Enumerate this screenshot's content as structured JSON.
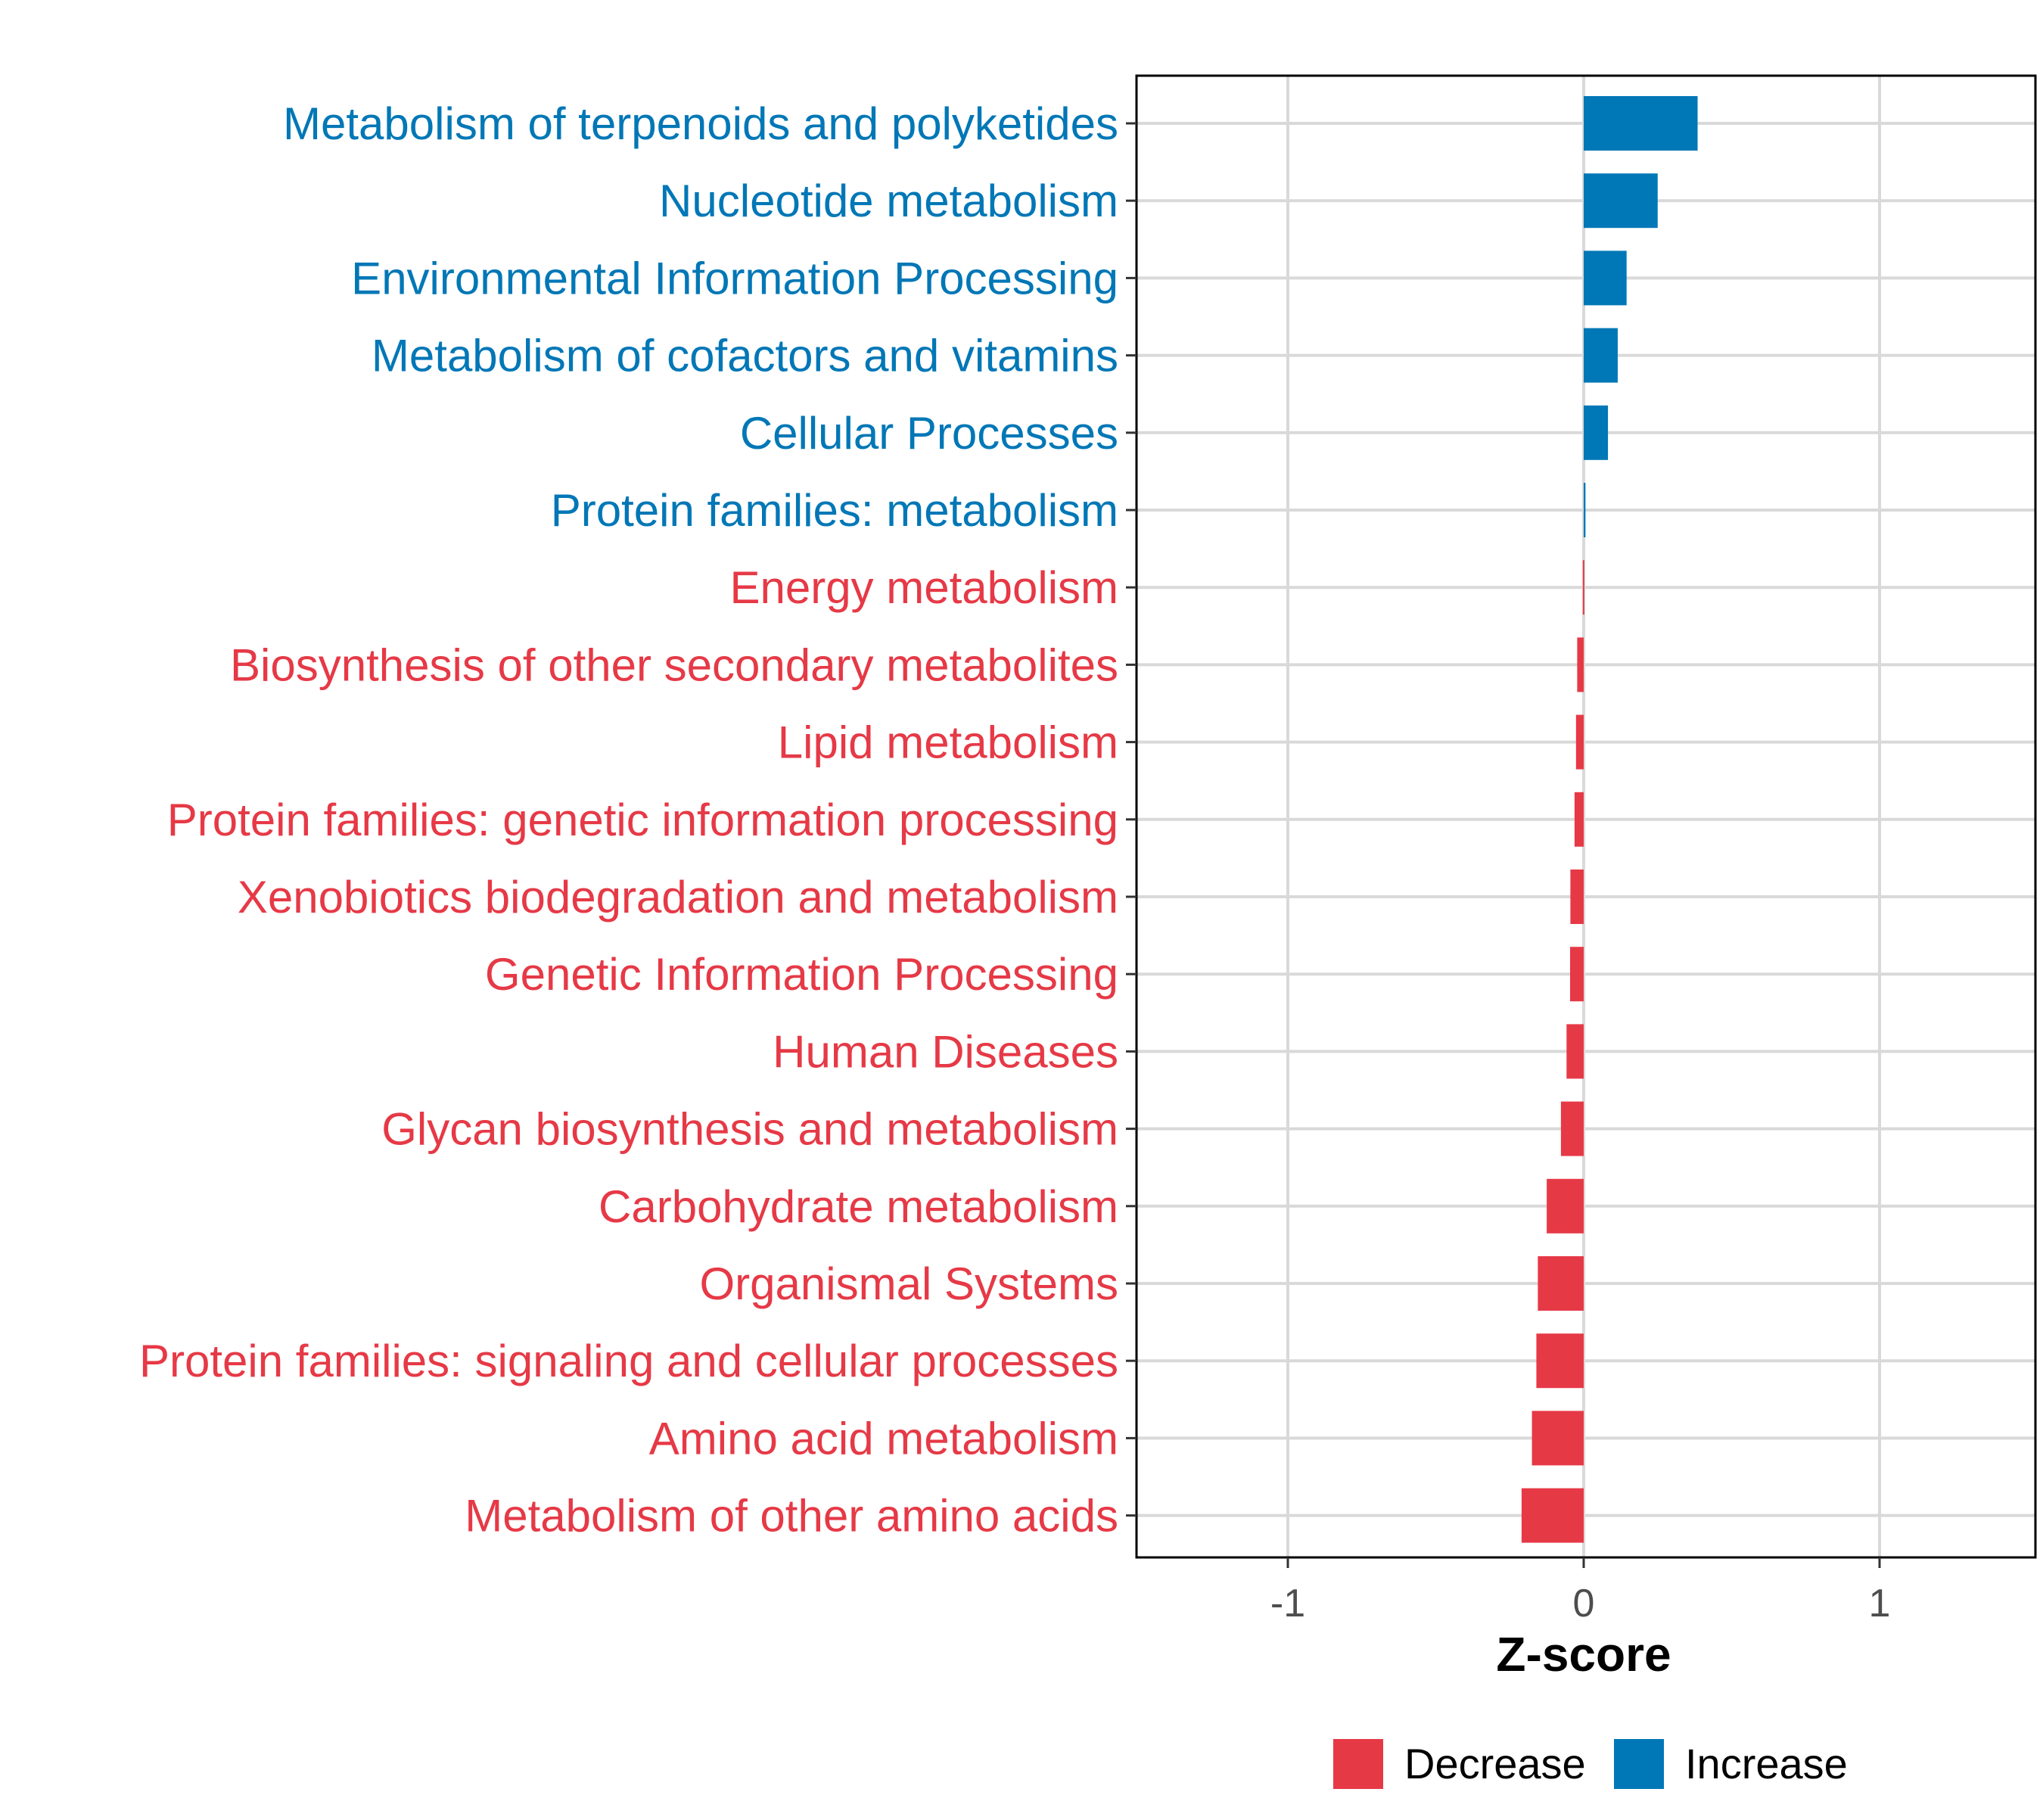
{
  "chart_data": {
    "type": "bar",
    "orientation": "horizontal",
    "categories": [
      "Metabolism of terpenoids and polyketides",
      "Nucleotide metabolism",
      "Environmental Information Processing",
      "Metabolism of cofactors and vitamins",
      "Cellular Processes",
      "Protein families: metabolism",
      "Energy metabolism",
      "Biosynthesis of other secondary metabolites",
      "Lipid metabolism",
      "Protein families: genetic information processing",
      "Xenobiotics biodegradation and metabolism",
      "Genetic Information Processing",
      "Human Diseases",
      "Glycan biosynthesis and metabolism",
      "Carbohydrate metabolism",
      "Organismal Systems",
      "Protein families: signaling and cellular processes",
      "Amino acid metabolism",
      "Metabolism of other amino acids"
    ],
    "values": [
      0.385,
      0.25,
      0.145,
      0.115,
      0.082,
      0.006,
      -0.003,
      -0.022,
      -0.026,
      -0.031,
      -0.045,
      -0.046,
      -0.058,
      -0.077,
      -0.125,
      -0.155,
      -0.16,
      -0.175,
      -0.21
    ],
    "groups": [
      "Increase",
      "Increase",
      "Increase",
      "Increase",
      "Increase",
      "Increase",
      "Decrease",
      "Decrease",
      "Decrease",
      "Decrease",
      "Decrease",
      "Decrease",
      "Decrease",
      "Decrease",
      "Decrease",
      "Decrease",
      "Decrease",
      "Decrease",
      "Decrease"
    ],
    "xlabel": "Z-score",
    "ylabel": "",
    "xlim": [
      -1.5,
      1.5
    ],
    "xticks": [
      -1,
      0,
      1
    ],
    "xtick_labels": [
      "-1",
      "0",
      "1"
    ],
    "grid": true,
    "legend": {
      "position": "bottom",
      "entries": [
        {
          "label": "Decrease",
          "color": "#e63946"
        },
        {
          "label": "Increase",
          "color": "#0077b6"
        }
      ]
    },
    "colors": {
      "Decrease": "#e63946",
      "Increase": "#0077b6"
    }
  }
}
